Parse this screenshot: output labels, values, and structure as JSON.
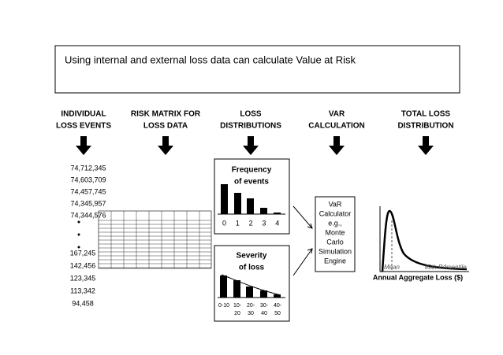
{
  "title": "Using internal and external loss data can calculate Value at Risk",
  "columns": [
    [
      "INDIVIDUAL",
      "LOSS EVENTS"
    ],
    [
      "RISK MATRIX FOR",
      "LOSS DATA"
    ],
    [
      "LOSS",
      "DISTRIBUTIONS"
    ],
    [
      "VAR",
      "CALCULATION"
    ],
    [
      "TOTAL LOSS",
      "DISTRIBUTION"
    ]
  ],
  "loss_events_top": [
    "74,712,345",
    "74,603,709",
    "74,457,745",
    "74,345,957",
    "74,344,576"
  ],
  "loss_events_bottom": [
    "167,245",
    "142,456",
    "123,345",
    "113,342",
    "94,458"
  ],
  "frequency": {
    "title": [
      "Frequency",
      "of events"
    ],
    "labels": [
      "0",
      "1",
      "2",
      "3",
      "4"
    ]
  },
  "severity": {
    "title": [
      "Severity",
      "of loss"
    ],
    "labels": [
      [
        "0-10"
      ],
      [
        "10-",
        "20"
      ],
      [
        "20-",
        "30"
      ],
      [
        "30-",
        "40"
      ],
      [
        "40-",
        "50"
      ]
    ]
  },
  "var_engine": [
    "VaR",
    "Calculator",
    "e.g.,",
    "Monte",
    "Carlo",
    "Simulation",
    "Engine"
  ],
  "total_loss": {
    "mean": "Mean",
    "percentile": "99th Percentile",
    "axis": "Annual Aggregate Loss ($)"
  }
}
